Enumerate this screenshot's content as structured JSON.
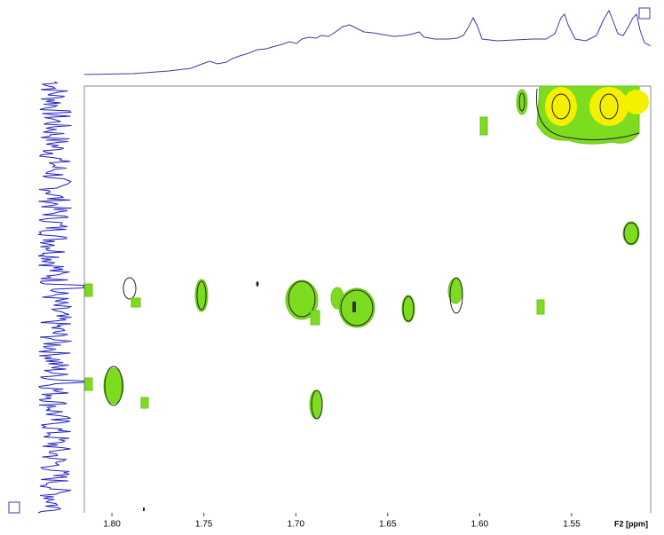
{
  "chart_data": {
    "type": "contour",
    "xlabel": "F2 [ppm]",
    "xlim": [
      1.815,
      1.507
    ],
    "xticks": [
      {
        "value": 1.8,
        "label": "1.80"
      },
      1.75,
      {
        "value": 1.7,
        "label": "1.70"
      },
      1.65,
      {
        "value": 1.6,
        "label": "1.60"
      },
      1.55
    ]
  }
}
